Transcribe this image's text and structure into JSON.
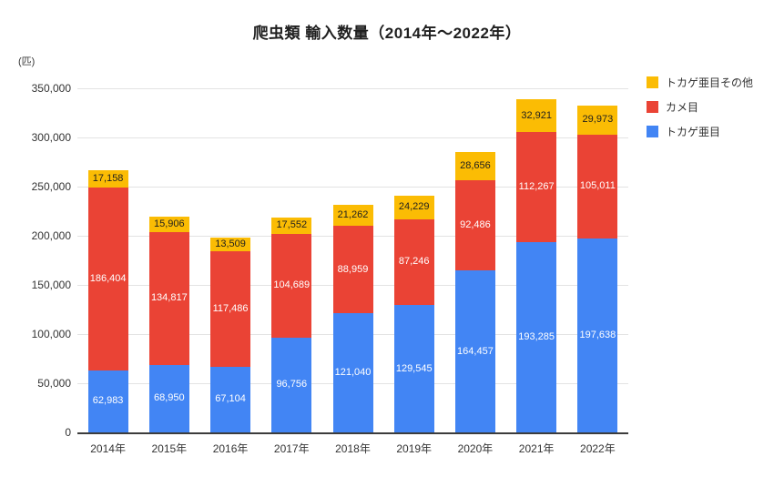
{
  "title": "爬虫類 輸入数量（2014年～2022年）",
  "unit_label": "(匹)",
  "colors": {
    "blue": "#4285F4",
    "red": "#EA4335",
    "yellow": "#FBBC04"
  },
  "legend": [
    {
      "key": "lizard-other",
      "label": "トカゲ亜目その他",
      "color": "#FBBC04"
    },
    {
      "key": "turtle",
      "label": "カメ目",
      "color": "#EA4335"
    },
    {
      "key": "lizard",
      "label": "トカゲ亜目",
      "color": "#4285F4"
    }
  ],
  "chart_data": {
    "type": "bar",
    "stacked": true,
    "title": "爬虫類 輸入数量（2014年～2022年）",
    "xlabel": "",
    "ylabel": "(匹)",
    "ylim": [
      0,
      350000
    ],
    "ytick_step": 50000,
    "yticks": [
      "0",
      "50,000",
      "100,000",
      "150,000",
      "200,000",
      "250,000",
      "300,000",
      "350,000"
    ],
    "grid": true,
    "legend_position": "top-right",
    "categories": [
      "2014年",
      "2015年",
      "2016年",
      "2017年",
      "2018年",
      "2019年",
      "2020年",
      "2021年",
      "2022年"
    ],
    "series": [
      {
        "key": "lizard",
        "name": "トカゲ亜目",
        "color": "#4285F4",
        "label_color": "#ffffff",
        "values": [
          62983,
          68950,
          67104,
          96756,
          121040,
          129545,
          164457,
          193285,
          197638
        ]
      },
      {
        "key": "turtle",
        "name": "カメ目",
        "color": "#EA4335",
        "label_color": "#ffffff",
        "values": [
          186404,
          134817,
          117486,
          104689,
          88959,
          87246,
          92486,
          112267,
          105011
        ]
      },
      {
        "key": "lizard-other",
        "name": "トカゲ亜目その他",
        "color": "#FBBC04",
        "label_color": "#1f1f1f",
        "values": [
          17158,
          15906,
          13509,
          17552,
          21262,
          24229,
          28656,
          32921,
          29973
        ]
      }
    ]
  }
}
